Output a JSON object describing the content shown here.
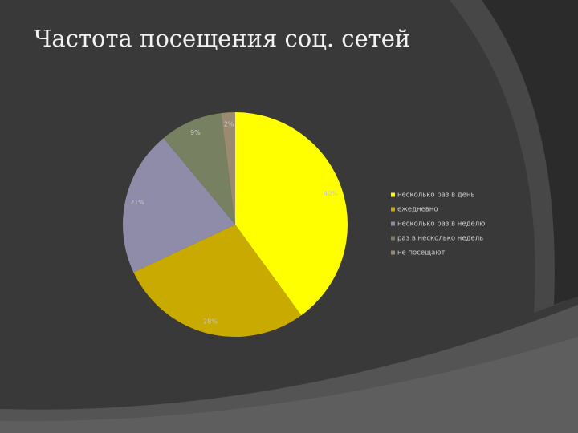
{
  "chart_data": {
    "type": "pie",
    "title": "Частота посещения соц. сетей",
    "categories": [
      "несколько раз в день",
      "ежедневно",
      "несколько раз в неделю",
      "раз в несколько недель",
      "не посещают"
    ],
    "values": [
      40,
      28,
      21,
      9,
      2
    ],
    "value_labels": [
      "40%",
      "28%",
      "21%",
      "9%",
      "2%"
    ],
    "colors": [
      "#ffff00",
      "#c9aa00",
      "#8e8ca8",
      "#778060",
      "#9a8b70"
    ],
    "legend": "right"
  }
}
